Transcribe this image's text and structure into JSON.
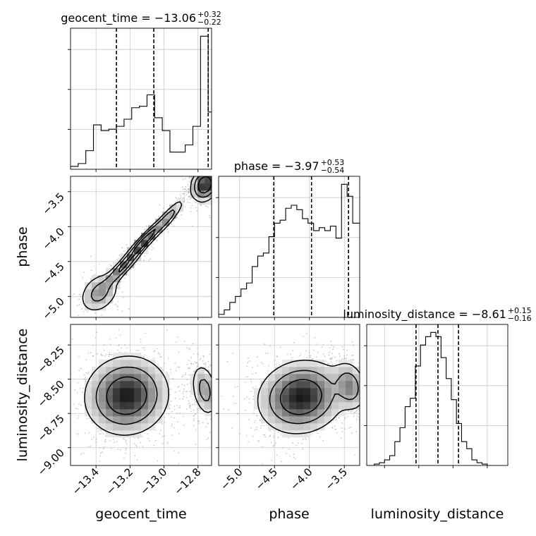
{
  "chart_data": {
    "type": "corner",
    "parameters": [
      "geocent_time",
      "phase",
      "luminosity_distance"
    ],
    "axis_labels": {
      "geocent_time": "geocent_time",
      "phase": "phase",
      "luminosity_distance": "luminosity_distance"
    },
    "ranges": {
      "geocent_time": [
        -13.55,
        -12.72
      ],
      "phase": [
        -5.3,
        -3.28
      ],
      "luminosity_distance": [
        -9.13,
        -8.1
      ]
    },
    "ticks": {
      "geocent_time": [
        {
          "v": -13.4,
          "label": "−13.4"
        },
        {
          "v": -13.2,
          "label": "−13.2"
        },
        {
          "v": -13.0,
          "label": "−13.0"
        },
        {
          "v": -12.8,
          "label": "−12.8"
        }
      ],
      "phase": [
        {
          "v": -5.0,
          "label": "−5.0"
        },
        {
          "v": -4.5,
          "label": "−4.5"
        },
        {
          "v": -4.0,
          "label": "−4.0"
        },
        {
          "v": -3.5,
          "label": "−3.5"
        }
      ],
      "luminosity_distance": [
        {
          "v": -9.0,
          "label": "−9.00"
        },
        {
          "v": -8.75,
          "label": "−8.75"
        },
        {
          "v": -8.5,
          "label": "−8.50"
        },
        {
          "v": -8.25,
          "label": "−8.25"
        }
      ]
    },
    "titles": {
      "geocent_time": {
        "prefix": "geocent_time = ",
        "median": "−13.06",
        "plus": "+0.32",
        "minus": "−0.22"
      },
      "phase": {
        "prefix": "phase = ",
        "median": "−3.97",
        "plus": "+0.53",
        "minus": "−0.54"
      },
      "luminosity_distance": {
        "prefix": "luminosity_distance = ",
        "median": "−8.61",
        "plus": "+0.15",
        "minus": "−0.16"
      }
    },
    "quantiles": {
      "geocent_time": [
        -13.28,
        -13.06,
        -12.74
      ],
      "phase": [
        -4.51,
        -3.97,
        -3.44
      ],
      "luminosity_distance": [
        -8.77,
        -8.61,
        -8.46
      ]
    },
    "histograms": {
      "geocent_time": {
        "edges": [
          -13.55,
          -13.505,
          -13.46,
          -13.415,
          -13.37,
          -13.325,
          -13.28,
          -13.235,
          -13.19,
          -13.145,
          -13.1,
          -13.055,
          -13.01,
          -12.965,
          -12.92,
          -12.875,
          -12.83,
          -12.785,
          -12.74,
          -12.72
        ],
        "counts": [
          2,
          4,
          13,
          31,
          27,
          28,
          30,
          35,
          43,
          44,
          52,
          36,
          27,
          12,
          12,
          17,
          30,
          93,
          40
        ]
      },
      "phase": {
        "edges": [
          -5.3,
          -5.22,
          -5.14,
          -5.06,
          -4.98,
          -4.9,
          -4.82,
          -4.74,
          -4.66,
          -4.58,
          -4.5,
          -4.42,
          -4.34,
          -4.26,
          -4.18,
          -4.1,
          -4.02,
          -3.94,
          -3.86,
          -3.78,
          -3.7,
          -3.62,
          -3.54,
          -3.46,
          -3.38,
          -3.28
        ],
        "counts": [
          2,
          5,
          10,
          14,
          19,
          23,
          34,
          41,
          43,
          54,
          63,
          65,
          73,
          75,
          72,
          66,
          63,
          58,
          60,
          58,
          61,
          53,
          89,
          81,
          63
        ]
      },
      "luminosity_distance": {
        "edges": [
          -9.15,
          -9.1125,
          -9.075,
          -9.0375,
          -9.0,
          -8.9625,
          -8.925,
          -8.8875,
          -8.85,
          -8.8125,
          -8.775,
          -8.7375,
          -8.7,
          -8.6625,
          -8.625,
          -8.5875,
          -8.55,
          -8.5125,
          -8.475,
          -8.4375,
          -8.4,
          -8.3625,
          -8.325,
          -8.2875,
          -8.25,
          -8.2125,
          -8.175
        ],
        "counts": [
          0,
          0,
          1,
          2,
          4,
          7,
          17,
          27,
          42,
          48,
          71,
          86,
          92,
          95,
          92,
          77,
          62,
          47,
          30,
          17,
          12,
          4,
          2,
          1,
          0,
          0
        ]
      }
    },
    "density_modes": {
      "phase_vs_geocent_time": [
        {
          "cx": -13.38,
          "cy": -4.95,
          "sx": 0.06,
          "sy": 0.15,
          "rho": 0.3,
          "w": 0.7
        },
        {
          "cx": -13.25,
          "cy": -4.6,
          "sx": 0.06,
          "sy": 0.15,
          "rho": 0.9,
          "w": 1.0
        },
        {
          "cx": -13.12,
          "cy": -4.22,
          "sx": 0.06,
          "sy": 0.16,
          "rho": 0.93,
          "w": 1.4
        },
        {
          "cx": -12.98,
          "cy": -3.88,
          "sx": 0.05,
          "sy": 0.14,
          "rho": 0.9,
          "w": 0.8
        },
        {
          "cx": -12.76,
          "cy": -3.4,
          "sx": 0.04,
          "sy": 0.12,
          "rho": 0.2,
          "w": 1.6
        }
      ],
      "luminosity_distance_vs_geocent_time": [
        {
          "cx": -13.22,
          "cy": -8.62,
          "sx": 0.12,
          "sy": 0.14,
          "rho": 0.05,
          "w": 2.2
        },
        {
          "cx": -12.76,
          "cy": -8.58,
          "sx": 0.04,
          "sy": 0.1,
          "rho": -0.3,
          "w": 1.0
        }
      ],
      "luminosity_distance_vs_phase": [
        {
          "cx": -4.12,
          "cy": -8.63,
          "sx": 0.3,
          "sy": 0.13,
          "rho": 0.1,
          "w": 2.0
        },
        {
          "cx": -3.42,
          "cy": -8.55,
          "sx": 0.12,
          "sy": 0.09,
          "rho": -0.2,
          "w": 1.0
        }
      ]
    },
    "grid": true
  }
}
